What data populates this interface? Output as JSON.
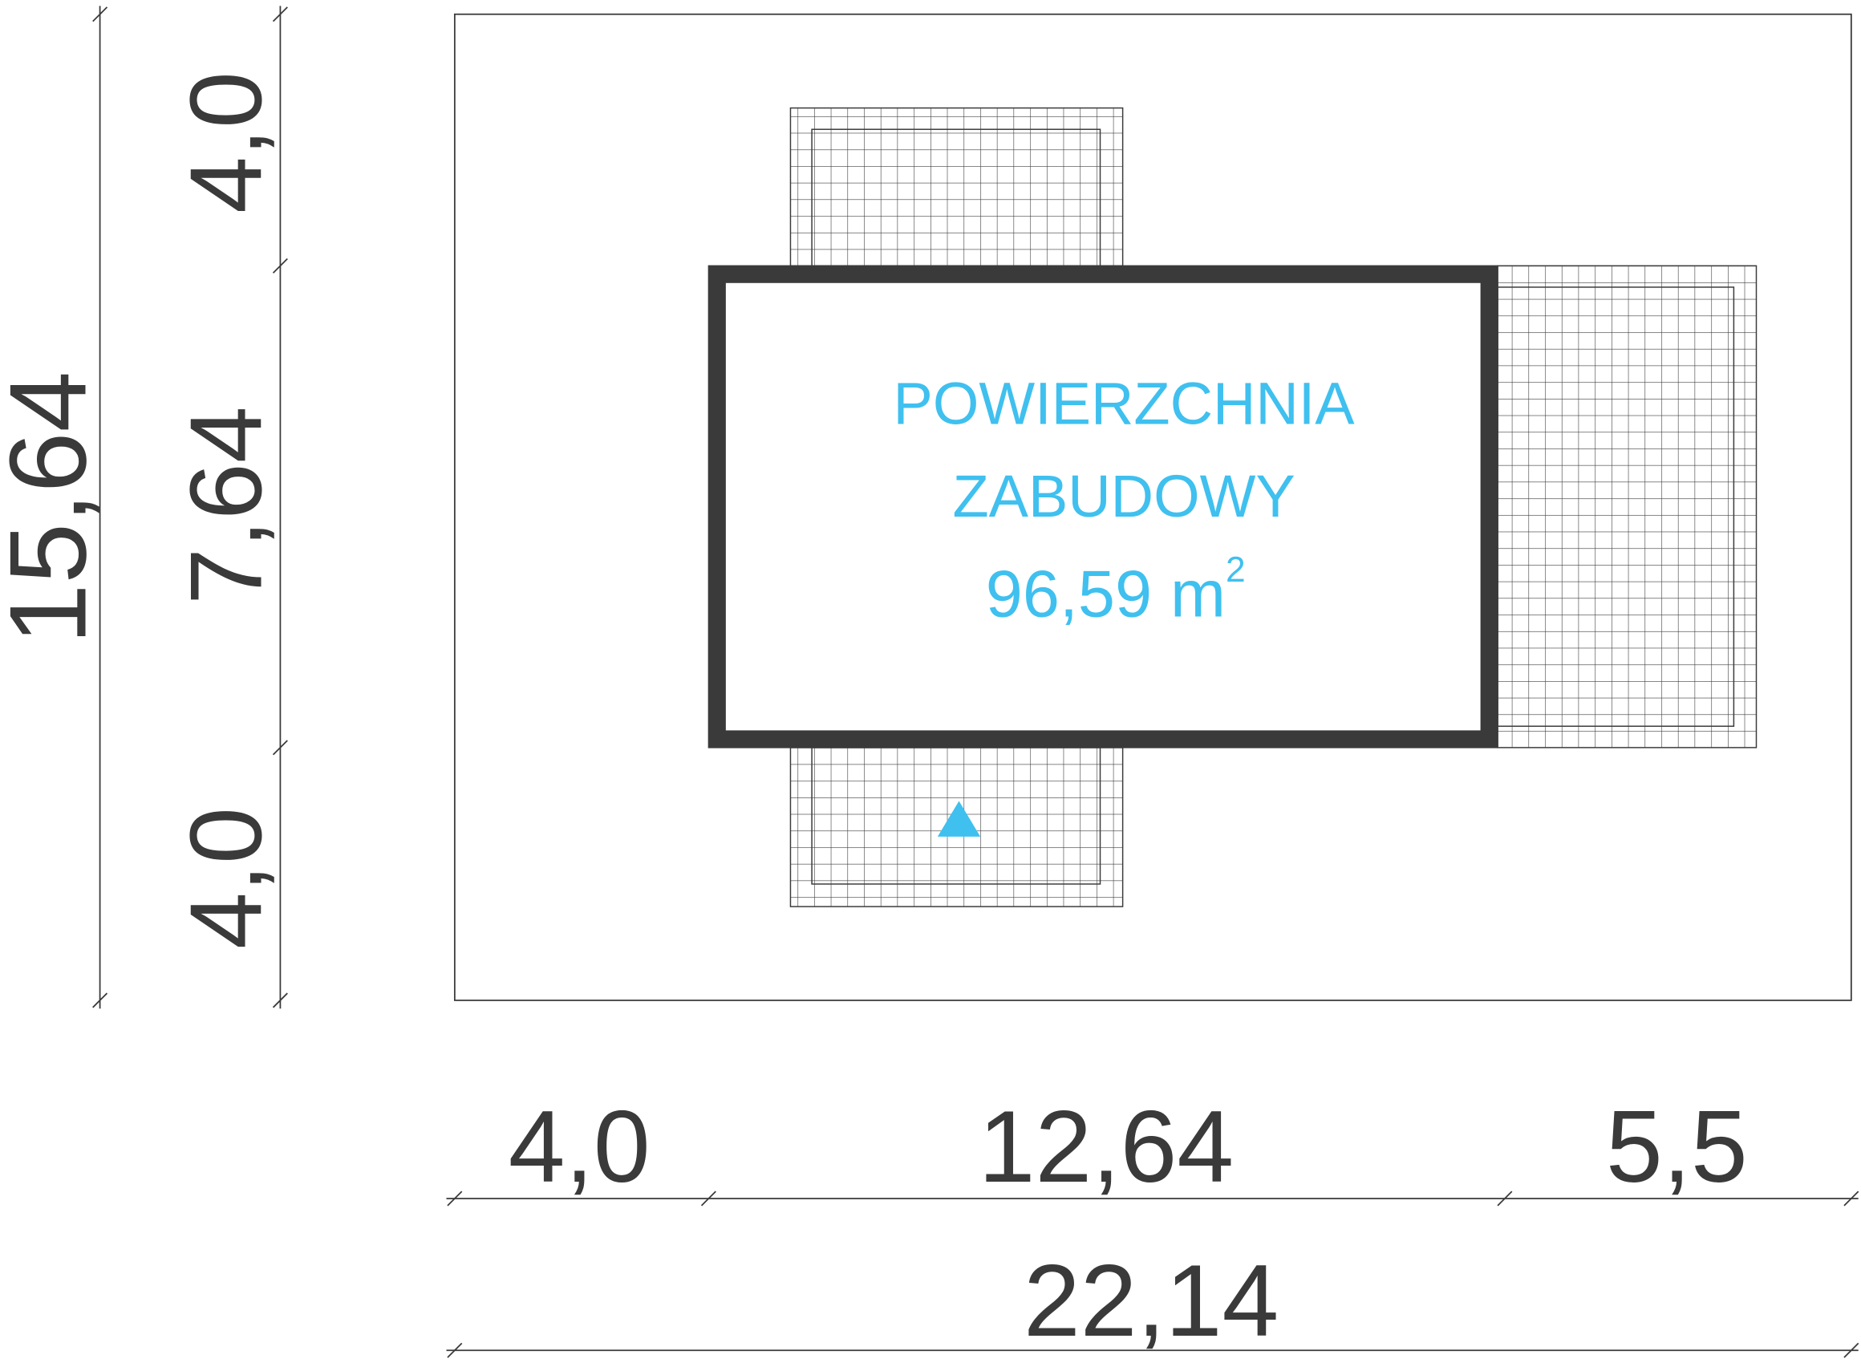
{
  "plan": {
    "label": {
      "line1": "POWIERZCHNIA",
      "line2": "ZABUDOWY",
      "area": "96,59 m",
      "superscript": "2"
    },
    "dimensions": {
      "left_total": "15,64",
      "left_segments": [
        "4,0",
        "7,64",
        "4,0"
      ],
      "bottom_segments": [
        "4,0",
        "12,64",
        "5,5"
      ],
      "bottom_total": "22,14"
    }
  }
}
